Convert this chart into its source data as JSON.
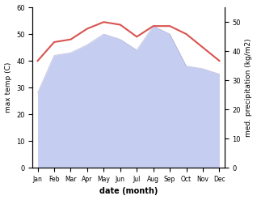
{
  "months": [
    "Jan",
    "Feb",
    "Mar",
    "Apr",
    "May",
    "Jun",
    "Jul",
    "Aug",
    "Sep",
    "Oct",
    "Nov",
    "Dec"
  ],
  "temp_max": [
    40,
    47,
    48,
    52,
    54.5,
    53.5,
    49,
    53,
    53,
    50,
    45,
    40
  ],
  "precip_left_scale": [
    28,
    42,
    43,
    46,
    50,
    48,
    44,
    53,
    50,
    38,
    37,
    35
  ],
  "temp_color": "#d9534f",
  "precip_fill_color": "#c5cdf0",
  "precip_line_color": "#9999cc",
  "ylim_left": [
    0,
    60
  ],
  "ylim_right": [
    0,
    55
  ],
  "ylabel_left": "max temp (C)",
  "ylabel_right": "med. precipitation (kg/m2)",
  "xlabel": "date (month)",
  "right_ticks": [
    0,
    10,
    20,
    30,
    40,
    50
  ],
  "left_ticks": [
    0,
    10,
    20,
    30,
    40,
    50,
    60
  ],
  "bg_color": "#ffffff"
}
